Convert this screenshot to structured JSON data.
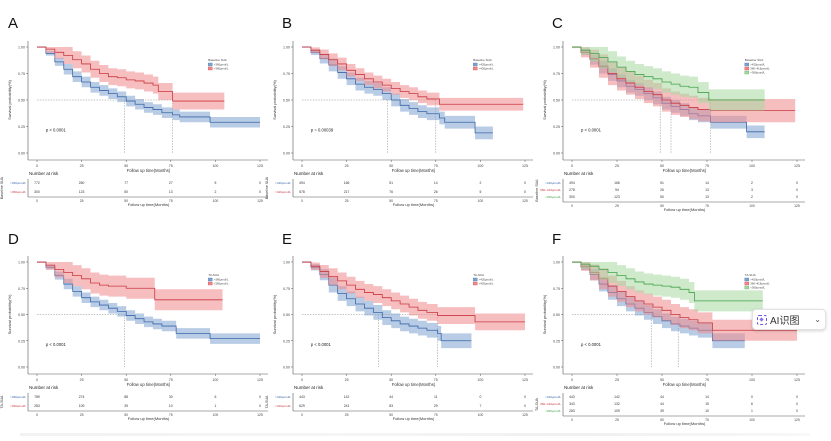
{
  "figure": {
    "ai_badge": {
      "label": "AI识图",
      "chevron": "⌄"
    }
  },
  "chart_data": [
    {
      "panel": "A",
      "type": "line",
      "subtype": "kaplan-meier",
      "xlabel": "Follow up time(Months)",
      "ylabel": "Survival probability(%)",
      "xlim": [
        0,
        125
      ],
      "ylim": [
        0,
        1
      ],
      "xticks": [
        0,
        25,
        50,
        75,
        100,
        125
      ],
      "yticks": [
        "0.00",
        "0.25",
        "0.50",
        "0.75",
        "1.00"
      ],
      "p_value": "p < 0.0001",
      "legend_title": "Baseline SUA",
      "legend_position": "top-right",
      "median_lines": [
        49,
        76
      ],
      "series": [
        {
          "name": "<360μmol/L",
          "color": "#3a66a8",
          "fill": "#7fa3cf",
          "x": [
            0,
            5,
            10,
            15,
            20,
            25,
            30,
            35,
            40,
            45,
            50,
            55,
            60,
            65,
            70,
            76,
            80,
            97,
            125
          ],
          "y": [
            1.0,
            0.94,
            0.86,
            0.79,
            0.72,
            0.67,
            0.62,
            0.59,
            0.56,
            0.53,
            0.49,
            0.46,
            0.43,
            0.41,
            0.38,
            0.36,
            0.34,
            0.29,
            0.29
          ],
          "ci_width": 0.05
        },
        {
          "name": ">360μmol/L",
          "color": "#c9383f",
          "fill": "#f0888c",
          "x": [
            0,
            5,
            10,
            15,
            20,
            25,
            30,
            35,
            40,
            45,
            50,
            55,
            60,
            65,
            68,
            76,
            105
          ],
          "y": [
            1.0,
            0.98,
            0.95,
            0.92,
            0.88,
            0.84,
            0.79,
            0.75,
            0.72,
            0.71,
            0.69,
            0.68,
            0.66,
            0.64,
            0.58,
            0.49,
            0.49
          ],
          "ci_width": 0.08
        }
      ],
      "risk_table": {
        "title": "Number at risk",
        "strata_label": "Baseline SUA",
        "times": [
          0,
          25,
          50,
          75,
          100,
          125
        ],
        "rows": [
          {
            "name": "<360μmol/L",
            "values": [
              772,
              260,
              77,
              27,
              5,
              0
            ]
          },
          {
            "name": ">360μmol/L",
            "values": [
              300,
              123,
              50,
              13,
              2,
              0
            ]
          }
        ]
      }
    },
    {
      "panel": "B",
      "type": "line",
      "subtype": "kaplan-meier",
      "xlabel": "Follow up time(Months)",
      "ylabel": "Survival probability(%)",
      "xlim": [
        0,
        125
      ],
      "ylim": [
        0,
        1
      ],
      "xticks": [
        0,
        25,
        50,
        75,
        100,
        125
      ],
      "yticks": [
        "0.00",
        "0.25",
        "0.50",
        "0.75",
        "1.00"
      ],
      "p_value": "p = 0.00039",
      "legend_title": "Baseline SUA",
      "legend_position": "top-right",
      "median_lines": [
        48,
        75
      ],
      "series": [
        {
          "name": "<420μmol/L",
          "color": "#3a66a8",
          "fill": "#7fa3cf",
          "x": [
            0,
            5,
            10,
            15,
            20,
            25,
            30,
            35,
            40,
            45,
            50,
            55,
            60,
            65,
            70,
            77,
            80,
            97,
            107
          ],
          "y": [
            1.0,
            0.95,
            0.89,
            0.83,
            0.76,
            0.7,
            0.65,
            0.62,
            0.6,
            0.56,
            0.5,
            0.45,
            0.42,
            0.39,
            0.37,
            0.33,
            0.29,
            0.19,
            0.19
          ],
          "ci_width": 0.06
        },
        {
          "name": ">420μmol/L",
          "color": "#c9383f",
          "fill": "#f0888c",
          "x": [
            0,
            5,
            10,
            15,
            20,
            25,
            30,
            35,
            40,
            45,
            50,
            55,
            60,
            65,
            70,
            77,
            124
          ],
          "y": [
            1.0,
            0.97,
            0.93,
            0.88,
            0.84,
            0.78,
            0.74,
            0.7,
            0.67,
            0.64,
            0.61,
            0.58,
            0.56,
            0.53,
            0.51,
            0.46,
            0.46
          ],
          "ci_width": 0.06
        }
      ],
      "risk_table": {
        "title": "Number at risk",
        "strata_label": "Baseline SUA",
        "times": [
          0,
          25,
          50,
          75,
          100,
          125
        ],
        "rows": [
          {
            "name": "<420μmol/L",
            "values": [
              494,
              166,
              51,
              14,
              2,
              0
            ]
          },
          {
            "name": ">420μmol/L",
            "values": [
              578,
              217,
              76,
              26,
              5,
              0
            ]
          }
        ]
      }
    },
    {
      "panel": "C",
      "type": "line",
      "subtype": "kaplan-meier",
      "xlabel": "Follow up time(Months)",
      "ylabel": "Survival probability(%)",
      "xlim": [
        0,
        125
      ],
      "ylim": [
        0,
        1
      ],
      "xticks": [
        0,
        25,
        50,
        75,
        100,
        125
      ],
      "yticks": [
        "0.00",
        "0.25",
        "0.50",
        "0.75",
        "1.00"
      ],
      "p_value": "p < 0.0001",
      "legend_title": "Baseline SUA",
      "legend_position": "top-right",
      "median_lines": [
        49,
        55,
        77
      ],
      "series": [
        {
          "name": ">420μmol/L",
          "color": "#3a66a8",
          "fill": "#7fa3cf",
          "x": [
            0,
            5,
            10,
            15,
            20,
            25,
            30,
            35,
            40,
            45,
            50,
            55,
            60,
            65,
            70,
            77,
            97,
            107
          ],
          "y": [
            1.0,
            0.95,
            0.88,
            0.81,
            0.74,
            0.68,
            0.63,
            0.6,
            0.56,
            0.52,
            0.47,
            0.44,
            0.41,
            0.37,
            0.35,
            0.29,
            0.2,
            0.2
          ],
          "ci_width": 0.06
        },
        {
          "name": "360~419μmol/L",
          "color": "#c9383f",
          "fill": "#f0888c",
          "x": [
            0,
            5,
            10,
            15,
            20,
            25,
            30,
            35,
            40,
            45,
            50,
            55,
            60,
            65,
            70,
            77,
            124
          ],
          "y": [
            1.0,
            0.95,
            0.89,
            0.82,
            0.75,
            0.7,
            0.66,
            0.62,
            0.58,
            0.55,
            0.5,
            0.47,
            0.45,
            0.43,
            0.41,
            0.4,
            0.4
          ],
          "ci_width": 0.11
        },
        {
          "name": "<360μmol/L",
          "color": "#43a24b",
          "fill": "#a5d9a0",
          "x": [
            0,
            5,
            10,
            15,
            20,
            25,
            30,
            35,
            40,
            45,
            50,
            55,
            60,
            65,
            70,
            76,
            107
          ],
          "y": [
            1.0,
            0.97,
            0.94,
            0.9,
            0.86,
            0.81,
            0.77,
            0.74,
            0.72,
            0.7,
            0.67,
            0.65,
            0.63,
            0.62,
            0.57,
            0.5,
            0.5
          ],
          "ci_width": 0.1
        }
      ],
      "risk_table": {
        "title": "Number at risk",
        "strata_label": "Baseline SUA",
        "times": [
          0,
          25,
          50,
          75,
          100,
          125
        ],
        "rows": [
          {
            "name": ">420μmol/L",
            "values": [
              494,
              166,
              51,
              14,
              2,
              0
            ]
          },
          {
            "name": "360~419μmol/L",
            "values": [
              278,
              94,
              26,
              13,
              3,
              0
            ]
          },
          {
            "name": "<360μmol/L",
            "values": [
              300,
              123,
              50,
              13,
              2,
              0
            ]
          }
        ]
      }
    },
    {
      "panel": "D",
      "type": "line",
      "subtype": "kaplan-meier",
      "xlabel": "Follow up time(Months)",
      "ylabel": "Survival probability(%)",
      "xlim": [
        0,
        125
      ],
      "ylim": [
        0,
        1
      ],
      "xticks": [
        0,
        25,
        50,
        75,
        100,
        125
      ],
      "yticks": [
        "0.00",
        "0.25",
        "0.50",
        "0.75",
        "1.00"
      ],
      "p_value": "p < 0.0001",
      "legend_title": "TA-SUA",
      "legend_position": "top-right",
      "median_lines": [
        49
      ],
      "series": [
        {
          "name": ">360μmol/L",
          "color": "#3a66a8",
          "fill": "#7fa3cf",
          "x": [
            0,
            5,
            10,
            15,
            20,
            25,
            30,
            35,
            40,
            45,
            50,
            55,
            60,
            65,
            70,
            78,
            97,
            125
          ],
          "y": [
            1.0,
            0.95,
            0.87,
            0.79,
            0.72,
            0.66,
            0.62,
            0.59,
            0.56,
            0.53,
            0.49,
            0.46,
            0.43,
            0.41,
            0.39,
            0.32,
            0.27,
            0.27
          ],
          "ci_width": 0.05
        },
        {
          "name": "<360μmol/L",
          "color": "#c9383f",
          "fill": "#f0888c",
          "x": [
            0,
            5,
            10,
            15,
            20,
            25,
            30,
            35,
            40,
            50,
            60,
            66,
            104
          ],
          "y": [
            1.0,
            0.97,
            0.93,
            0.9,
            0.87,
            0.84,
            0.8,
            0.78,
            0.77,
            0.75,
            0.75,
            0.64,
            0.64
          ],
          "ci_width": 0.1
        }
      ],
      "risk_table": {
        "title": "Number at risk",
        "strata_label": "TA-SUA",
        "times": [
          0,
          25,
          50,
          75,
          100,
          125
        ],
        "rows": [
          {
            "name": ">360μmol/L",
            "values": [
              789,
              274,
              88,
              30,
              6,
              0
            ]
          },
          {
            "name": "<360μmol/L",
            "values": [
              283,
              109,
              39,
              10,
              1,
              0
            ]
          }
        ]
      }
    },
    {
      "panel": "E",
      "type": "line",
      "subtype": "kaplan-meier",
      "xlabel": "Follow up time(Months)",
      "ylabel": "Survival probability(%)",
      "xlim": [
        0,
        125
      ],
      "ylim": [
        0,
        1
      ],
      "xticks": [
        0,
        25,
        50,
        75,
        100,
        125
      ],
      "yticks": [
        "0.00",
        "0.25",
        "0.50",
        "0.75",
        "1.00"
      ],
      "p_value": "p < 0.0001",
      "legend_title": "TA-SUA",
      "legend_position": "top-right",
      "median_lines": [
        43,
        76
      ],
      "series": [
        {
          "name": ">420μmol/L",
          "color": "#3a66a8",
          "fill": "#7fa3cf",
          "x": [
            0,
            5,
            10,
            15,
            20,
            25,
            30,
            35,
            40,
            45,
            50,
            55,
            60,
            65,
            70,
            76,
            78,
            95
          ],
          "y": [
            1.0,
            0.95,
            0.88,
            0.78,
            0.7,
            0.65,
            0.6,
            0.56,
            0.52,
            0.47,
            0.44,
            0.41,
            0.39,
            0.37,
            0.35,
            0.32,
            0.25,
            0.25
          ],
          "ci_width": 0.07
        },
        {
          "name": "<420μmol/L",
          "color": "#c9383f",
          "fill": "#f0888c",
          "x": [
            0,
            5,
            10,
            15,
            20,
            25,
            30,
            35,
            40,
            45,
            50,
            55,
            60,
            65,
            70,
            76,
            97,
            125
          ],
          "y": [
            1.0,
            0.96,
            0.91,
            0.86,
            0.82,
            0.78,
            0.74,
            0.71,
            0.69,
            0.66,
            0.63,
            0.6,
            0.57,
            0.54,
            0.52,
            0.49,
            0.43,
            0.43
          ],
          "ci_width": 0.08
        }
      ],
      "risk_table": {
        "title": "Number at risk",
        "strata_label": "TA-SUA",
        "times": [
          0,
          25,
          50,
          75,
          100,
          125
        ],
        "rows": [
          {
            "name": ">420μmol/L",
            "values": [
              443,
              142,
              44,
              11,
              0,
              0
            ]
          },
          {
            "name": "<420μmol/L",
            "values": [
              629,
              241,
              83,
              29,
              7,
              0
            ]
          }
        ]
      }
    },
    {
      "panel": "F",
      "type": "line",
      "subtype": "kaplan-meier",
      "xlabel": "Follow up time(Months)",
      "ylabel": "Survival probability(%)",
      "xlim": [
        0,
        125
      ],
      "ylim": [
        0,
        1
      ],
      "xticks": [
        0,
        25,
        50,
        75,
        100,
        125
      ],
      "yticks": [
        "0.00",
        "0.25",
        "0.50",
        "0.75",
        "1.00"
      ],
      "p_value": "p < 0.0001",
      "legend_title": "TA-SUA",
      "legend_position": "top-right",
      "median_lines": [
        44,
        59
      ],
      "series": [
        {
          "name": ">420μmol/L",
          "color": "#3a66a8",
          "fill": "#7fa3cf",
          "x": [
            0,
            5,
            10,
            15,
            20,
            25,
            30,
            35,
            40,
            45,
            50,
            55,
            60,
            65,
            70,
            78,
            96
          ],
          "y": [
            1.0,
            0.95,
            0.88,
            0.79,
            0.71,
            0.65,
            0.6,
            0.56,
            0.52,
            0.48,
            0.44,
            0.41,
            0.39,
            0.37,
            0.35,
            0.25,
            0.25
          ],
          "ci_width": 0.07
        },
        {
          "name": "360~419μmol/L",
          "color": "#c9383f",
          "fill": "#f0888c",
          "x": [
            0,
            5,
            10,
            15,
            20,
            25,
            30,
            35,
            40,
            45,
            50,
            55,
            60,
            65,
            70,
            78,
            125
          ],
          "y": [
            1.0,
            0.96,
            0.9,
            0.84,
            0.77,
            0.72,
            0.67,
            0.63,
            0.6,
            0.57,
            0.54,
            0.5,
            0.47,
            0.45,
            0.42,
            0.35,
            0.35
          ],
          "ci_width": 0.1
        },
        {
          "name": "<360μmol/L",
          "color": "#43a24b",
          "fill": "#a5d9a0",
          "x": [
            0,
            5,
            10,
            15,
            20,
            25,
            30,
            35,
            40,
            45,
            50,
            55,
            60,
            65,
            68,
            106
          ],
          "y": [
            1.0,
            0.98,
            0.96,
            0.93,
            0.9,
            0.87,
            0.84,
            0.81,
            0.79,
            0.78,
            0.77,
            0.76,
            0.74,
            0.71,
            0.63,
            0.63
          ],
          "ci_width": 0.1
        }
      ],
      "risk_table": {
        "title": "Number at risk",
        "strata_label": "TA-SUA",
        "times": [
          0,
          25,
          50,
          75,
          100,
          125
        ],
        "rows": [
          {
            "name": ">420μmol/L",
            "values": [
              443,
              142,
              44,
              14,
              0,
              0
            ]
          },
          {
            "name": "360~419μmol/L",
            "values": [
              343,
              132,
              44,
              15,
              6,
              0
            ]
          },
          {
            "name": "<360μmol/L",
            "values": [
              283,
              109,
              39,
              10,
              1,
              0
            ]
          }
        ]
      }
    }
  ]
}
